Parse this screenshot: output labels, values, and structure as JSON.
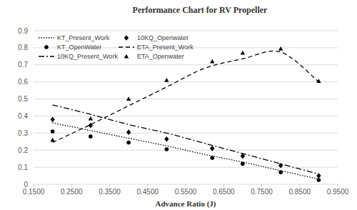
{
  "chart_data": {
    "type": "line",
    "title": "Performance Chart for RV Propeller",
    "x_label": "Advance Ratio (J)",
    "xlim": [
      0.15,
      0.95
    ],
    "xticks": [
      {
        "value": 0.15,
        "label": "0.1500"
      },
      {
        "value": 0.25,
        "label": "0.2500"
      },
      {
        "value": 0.35,
        "label": "0.3500"
      },
      {
        "value": 0.45,
        "label": "0.4500"
      },
      {
        "value": 0.55,
        "label": "0.5500"
      },
      {
        "value": 0.65,
        "label": "0.6500"
      },
      {
        "value": 0.75,
        "label": "0.7500"
      },
      {
        "value": 0.85,
        "label": "0.8500"
      },
      {
        "value": 0.95,
        "label": "0.9500"
      }
    ],
    "ylim": [
      0,
      0.9
    ],
    "yticks": [
      0,
      0.1,
      0.2,
      0.3,
      0.4,
      0.5,
      0.6,
      0.7,
      0.8,
      0.9
    ],
    "grid": true,
    "legend": "top-left",
    "series": [
      {
        "name": "KT_Present_Work",
        "type": "line",
        "line_style": "dotted",
        "marker": "none",
        "color": "#000000",
        "x": [
          0.2,
          0.3,
          0.4,
          0.5,
          0.6,
          0.7,
          0.8,
          0.9
        ],
        "values": [
          0.36,
          0.315,
          0.27,
          0.225,
          0.175,
          0.13,
          0.08,
          0.03
        ]
      },
      {
        "name": "KT_OpenWater",
        "type": "scatter",
        "line_style": "none",
        "marker": "circle",
        "color": "#000000",
        "x": [
          0.2,
          0.3,
          0.4,
          0.5,
          0.62,
          0.7,
          0.8,
          0.9
        ],
        "values": [
          0.31,
          0.28,
          0.245,
          0.205,
          0.155,
          0.12,
          0.07,
          0.025
        ]
      },
      {
        "name": "10KQ_Present_Work",
        "type": "line",
        "line_style": "dashdot",
        "marker": "none",
        "color": "#000000",
        "x": [
          0.2,
          0.3,
          0.4,
          0.5,
          0.6,
          0.7,
          0.8,
          0.9
        ],
        "values": [
          0.465,
          0.41,
          0.35,
          0.3,
          0.24,
          0.18,
          0.12,
          0.06
        ]
      },
      {
        "name": "10KQ_Openwater",
        "type": "scatter",
        "line_style": "none",
        "marker": "diamond",
        "color": "#000000",
        "x": [
          0.2,
          0.3,
          0.4,
          0.5,
          0.62,
          0.7,
          0.8,
          0.9
        ],
        "values": [
          0.38,
          0.345,
          0.305,
          0.265,
          0.21,
          0.165,
          0.11,
          0.05
        ]
      },
      {
        "name": "ETA_Present_Work",
        "type": "line",
        "line_style": "dashed",
        "marker": "none",
        "color": "#000000",
        "x": [
          0.2,
          0.3,
          0.4,
          0.5,
          0.6,
          0.7,
          0.8,
          0.9
        ],
        "values": [
          0.245,
          0.35,
          0.46,
          0.57,
          0.68,
          0.735,
          0.775,
          0.6
        ]
      },
      {
        "name": "ETA_Openwater",
        "type": "scatter",
        "line_style": "none",
        "marker": "triangle",
        "color": "#000000",
        "x": [
          0.2,
          0.3,
          0.4,
          0.5,
          0.62,
          0.7,
          0.8,
          0.9
        ],
        "values": [
          0.26,
          0.385,
          0.5,
          0.61,
          0.72,
          0.77,
          0.795,
          0.605
        ]
      }
    ]
  }
}
